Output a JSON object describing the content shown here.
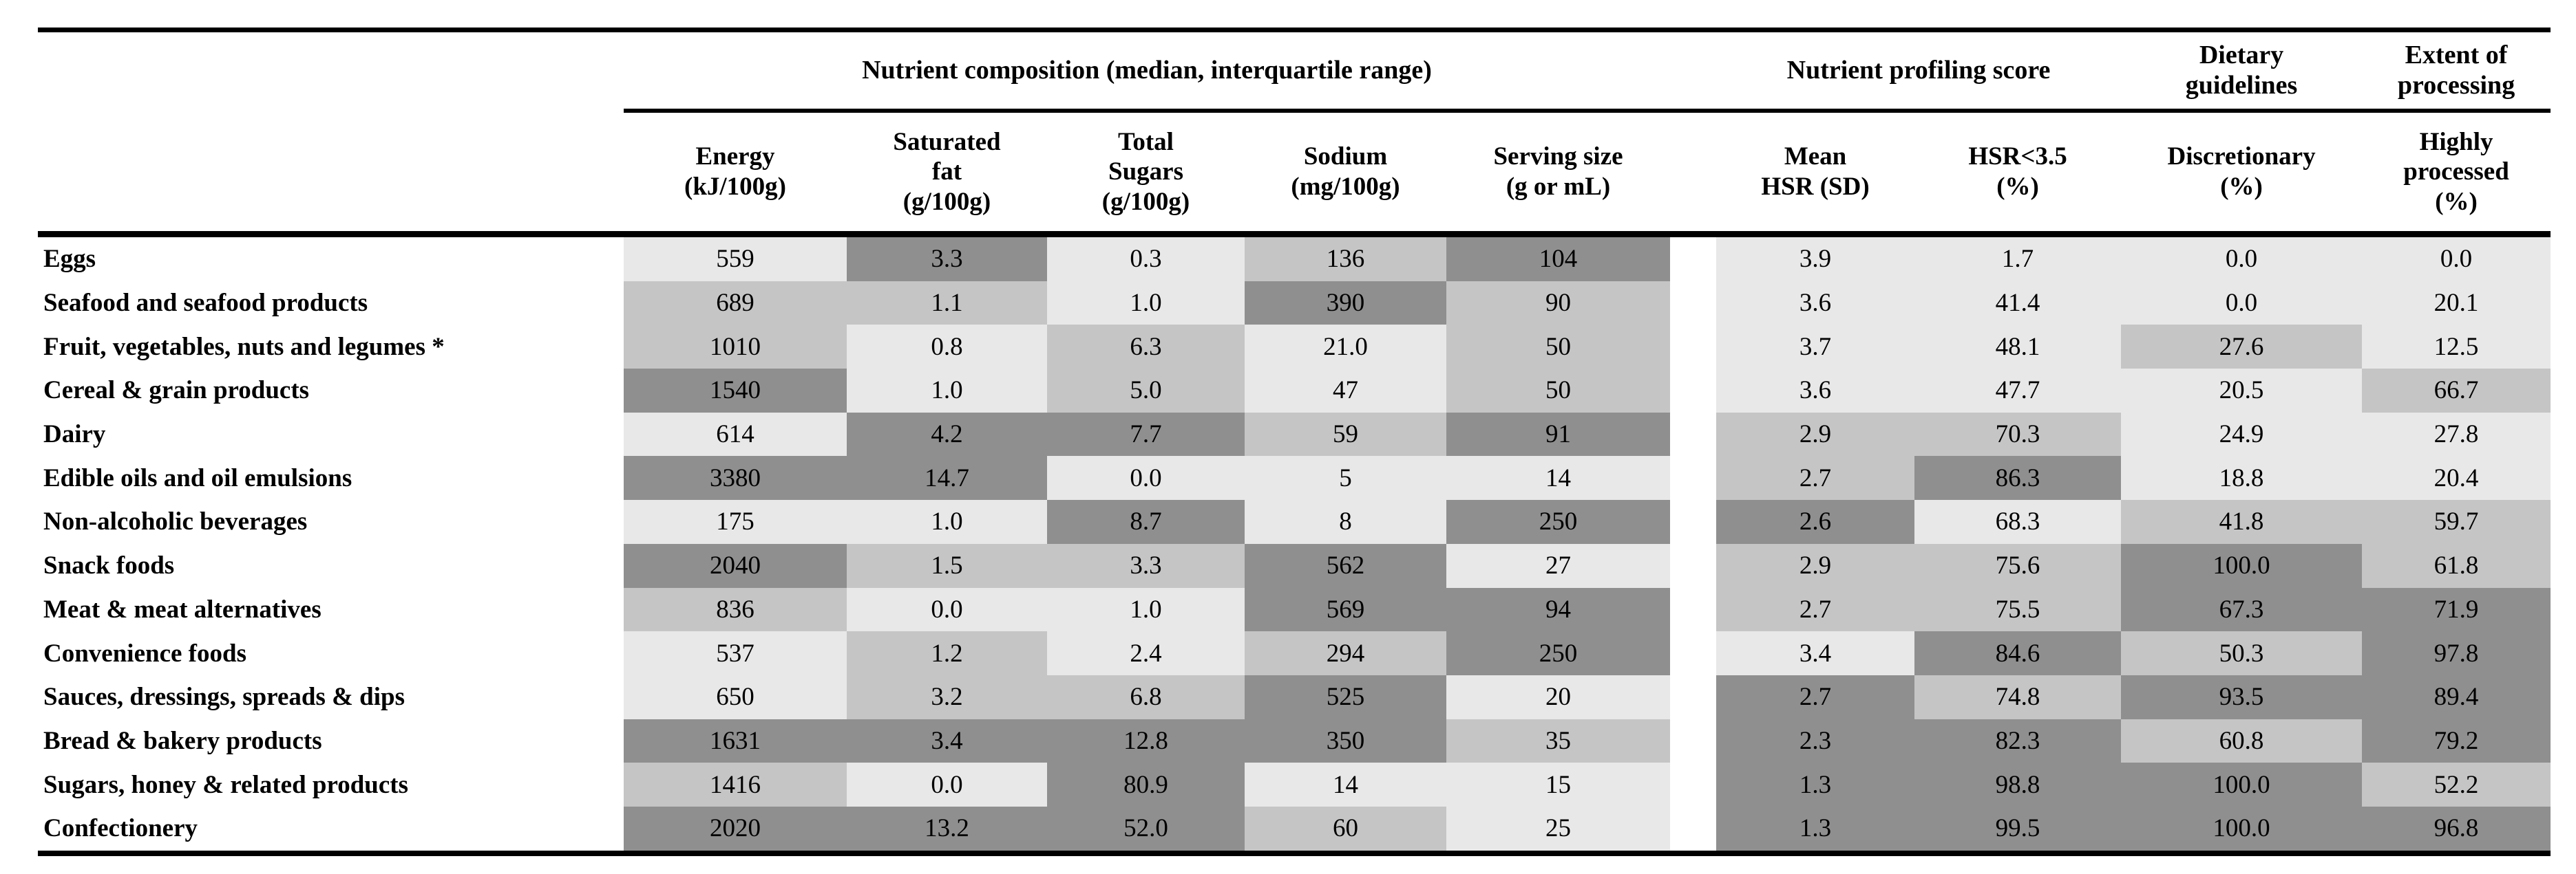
{
  "table": {
    "group_headers": [
      "Nutrient composition (median, interquartile range)",
      "Nutrient profiling score",
      "Dietary\nguidelines",
      "Extent of\nprocessing"
    ],
    "column_headers": [
      "Energy\n(kJ/100g)",
      "Saturated\nfat\n(g/100g)",
      "Total\nSugars\n(g/100g)",
      "Sodium\n(mg/100g)",
      "Serving size\n(g or mL)",
      "Mean\nHSR (SD)",
      "HSR<3.5\n(%)",
      "Discretionary\n(%)",
      "Highly\nprocessed\n(%)"
    ],
    "shade_colors": {
      "1": "#e8e8e8",
      "2": "#c5c5c5",
      "3": "#8f8f8f"
    },
    "rows": [
      {
        "label": "Eggs",
        "cells": [
          [
            "559",
            1
          ],
          [
            "3.3",
            3
          ],
          [
            "0.3",
            1
          ],
          [
            "136",
            2
          ],
          [
            "104",
            3
          ],
          [
            "3.9",
            1
          ],
          [
            "1.7",
            1
          ],
          [
            "0.0",
            1
          ],
          [
            "0.0",
            1
          ]
        ]
      },
      {
        "label": "Seafood and seafood products",
        "cells": [
          [
            "689",
            2
          ],
          [
            "1.1",
            2
          ],
          [
            "1.0",
            1
          ],
          [
            "390",
            3
          ],
          [
            "90",
            2
          ],
          [
            "3.6",
            1
          ],
          [
            "41.4",
            1
          ],
          [
            "0.0",
            1
          ],
          [
            "20.1",
            1
          ]
        ]
      },
      {
        "label": "Fruit, vegetables, nuts and legumes *",
        "cells": [
          [
            "1010",
            2
          ],
          [
            "0.8",
            1
          ],
          [
            "6.3",
            2
          ],
          [
            "21.0",
            1
          ],
          [
            "50",
            2
          ],
          [
            "3.7",
            1
          ],
          [
            "48.1",
            1
          ],
          [
            "27.6",
            2
          ],
          [
            "12.5",
            1
          ]
        ]
      },
      {
        "label": "Cereal & grain products",
        "cells": [
          [
            "1540",
            3
          ],
          [
            "1.0",
            1
          ],
          [
            "5.0",
            2
          ],
          [
            "47",
            1
          ],
          [
            "50",
            2
          ],
          [
            "3.6",
            1
          ],
          [
            "47.7",
            1
          ],
          [
            "20.5",
            1
          ],
          [
            "66.7",
            2
          ]
        ]
      },
      {
        "label": "Dairy",
        "cells": [
          [
            "614",
            1
          ],
          [
            "4.2",
            3
          ],
          [
            "7.7",
            3
          ],
          [
            "59",
            2
          ],
          [
            "91",
            3
          ],
          [
            "2.9",
            2
          ],
          [
            "70.3",
            2
          ],
          [
            "24.9",
            1
          ],
          [
            "27.8",
            1
          ]
        ]
      },
      {
        "label": "Edible oils and oil emulsions",
        "cells": [
          [
            "3380",
            3
          ],
          [
            "14.7",
            3
          ],
          [
            "0.0",
            1
          ],
          [
            "5",
            1
          ],
          [
            "14",
            1
          ],
          [
            "2.7",
            2
          ],
          [
            "86.3",
            3
          ],
          [
            "18.8",
            1
          ],
          [
            "20.4",
            1
          ]
        ]
      },
      {
        "label": "Non-alcoholic beverages",
        "cells": [
          [
            "175",
            1
          ],
          [
            "1.0",
            1
          ],
          [
            "8.7",
            3
          ],
          [
            "8",
            1
          ],
          [
            "250",
            3
          ],
          [
            "2.6",
            3
          ],
          [
            "68.3",
            1
          ],
          [
            "41.8",
            2
          ],
          [
            "59.7",
            2
          ]
        ]
      },
      {
        "label": "Snack foods",
        "cells": [
          [
            "2040",
            3
          ],
          [
            "1.5",
            2
          ],
          [
            "3.3",
            2
          ],
          [
            "562",
            3
          ],
          [
            "27",
            1
          ],
          [
            "2.9",
            2
          ],
          [
            "75.6",
            2
          ],
          [
            "100.0",
            3
          ],
          [
            "61.8",
            2
          ]
        ]
      },
      {
        "label": "Meat & meat alternatives",
        "cells": [
          [
            "836",
            2
          ],
          [
            "0.0",
            1
          ],
          [
            "1.0",
            1
          ],
          [
            "569",
            3
          ],
          [
            "94",
            3
          ],
          [
            "2.7",
            2
          ],
          [
            "75.5",
            2
          ],
          [
            "67.3",
            3
          ],
          [
            "71.9",
            3
          ]
        ]
      },
      {
        "label": "Convenience foods",
        "cells": [
          [
            "537",
            1
          ],
          [
            "1.2",
            2
          ],
          [
            "2.4",
            1
          ],
          [
            "294",
            2
          ],
          [
            "250",
            3
          ],
          [
            "3.4",
            1
          ],
          [
            "84.6",
            3
          ],
          [
            "50.3",
            2
          ],
          [
            "97.8",
            3
          ]
        ]
      },
      {
        "label": "Sauces, dressings, spreads & dips",
        "cells": [
          [
            "650",
            1
          ],
          [
            "3.2",
            2
          ],
          [
            "6.8",
            2
          ],
          [
            "525",
            3
          ],
          [
            "20",
            1
          ],
          [
            "2.7",
            3
          ],
          [
            "74.8",
            2
          ],
          [
            "93.5",
            3
          ],
          [
            "89.4",
            3
          ]
        ]
      },
      {
        "label": "Bread & bakery products",
        "cells": [
          [
            "1631",
            3
          ],
          [
            "3.4",
            3
          ],
          [
            "12.8",
            3
          ],
          [
            "350",
            3
          ],
          [
            "35",
            2
          ],
          [
            "2.3",
            3
          ],
          [
            "82.3",
            3
          ],
          [
            "60.8",
            2
          ],
          [
            "79.2",
            3
          ]
        ]
      },
      {
        "label": "Sugars, honey & related products",
        "cells": [
          [
            "1416",
            2
          ],
          [
            "0.0",
            1
          ],
          [
            "80.9",
            3
          ],
          [
            "14",
            1
          ],
          [
            "15",
            1
          ],
          [
            "1.3",
            3
          ],
          [
            "98.8",
            3
          ],
          [
            "100.0",
            3
          ],
          [
            "52.2",
            2
          ]
        ]
      },
      {
        "label": "Confectionery",
        "cells": [
          [
            "2020",
            3
          ],
          [
            "13.2",
            3
          ],
          [
            "52.0",
            3
          ],
          [
            "60",
            2
          ],
          [
            "25",
            1
          ],
          [
            "1.3",
            3
          ],
          [
            "99.5",
            3
          ],
          [
            "100.0",
            3
          ],
          [
            "96.8",
            3
          ]
        ]
      }
    ]
  }
}
